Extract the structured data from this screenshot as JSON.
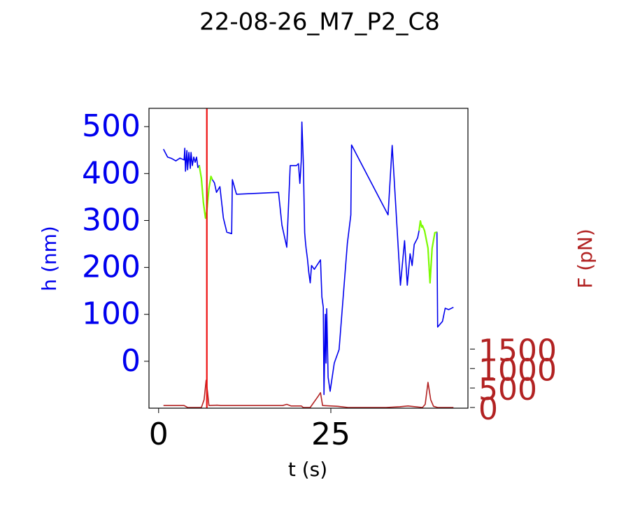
{
  "chart_data": {
    "type": "line",
    "title": "22-08-26_M7_P2_C8",
    "xlabel": "t (s)",
    "ylabel": "h (nm)",
    "y2label": "F (pN)",
    "xlim": [
      -1.4,
      44.9
    ],
    "ylim": [
      -100,
      539
    ],
    "y2lim": [
      -18,
      7680
    ],
    "xticks": [
      0,
      25
    ],
    "yticks": [
      0,
      100,
      200,
      300,
      400,
      500
    ],
    "y2ticks": [
      0,
      500,
      1000,
      1500
    ],
    "vline": {
      "x": 7.0,
      "color": "#ee1111"
    },
    "series": [
      {
        "color": "#0000ee",
        "x": [
          0.7,
          1.3,
          1.9,
          2.5,
          3.1,
          3.7,
          3.8,
          3.9,
          4.1,
          4.2,
          4.4,
          4.6,
          4.7,
          4.9,
          5.1,
          5.3,
          5.5,
          5.7,
          5.9,
          6.2,
          6.5,
          6.8,
          7.0,
          7.3,
          7.6,
          7.8,
          8.1,
          8.4,
          8.9,
          9.4,
          9.9,
          10.6,
          10.7,
          11.3,
          17.4,
          17.9,
          18.6,
          19.1,
          20.0,
          20.3,
          20.5,
          20.7,
          20.8,
          21.0,
          21.2,
          21.3,
          21.4,
          21.6,
          21.8,
          22.0,
          22.2,
          22.6,
          23.5,
          23.7,
          23.9,
          24.0,
          24.2,
          24.3,
          24.4,
          24.6,
          24.9,
          25.5,
          26.2,
          27.4,
          27.9,
          28.0,
          33.3,
          33.9,
          35.1,
          35.7,
          36.1,
          36.5,
          36.8,
          37.1,
          37.6,
          37.8,
          38.0,
          38.2,
          38.3,
          38.6,
          39.1,
          39.4,
          39.7,
          40.1,
          40.4,
          40.5,
          41.2,
          41.6,
          42.1,
          42.8
        ],
        "values": [
          452,
          435,
          432,
          427,
          433,
          429,
          454,
          405,
          449,
          408,
          445,
          411,
          445,
          417,
          435,
          424,
          435,
          413,
          417,
          390,
          338,
          305,
          320,
          368,
          394,
          387,
          380,
          360,
          372,
          305,
          275,
          272,
          387,
          356,
          360,
          290,
          243,
          417,
          417,
          421,
          379,
          427,
          510,
          427,
          274,
          256,
          241,
          219,
          189,
          167,
          204,
          196,
          216,
          137,
          115,
          -71,
          100,
          -4,
          112,
          -34,
          -64,
          -4,
          25,
          251,
          312,
          461,
          312,
          460,
          162,
          257,
          162,
          229,
          204,
          249,
          263,
          278,
          299,
          286,
          289,
          278,
          241,
          167,
          241,
          274,
          275,
          73,
          85,
          113,
          110,
          115
        ]
      },
      {
        "color": "#7cfc00",
        "x": [
          5.9,
          6.2,
          6.5,
          6.8,
          7.0,
          7.3,
          7.6,
          7.8,
          null,
          37.8,
          38.0,
          38.2,
          38.3,
          38.6,
          39.1,
          39.4,
          39.7,
          40.1,
          40.4
        ],
        "values": [
          417,
          390,
          338,
          305,
          320,
          368,
          394,
          387,
          null,
          278,
          299,
          286,
          289,
          278,
          241,
          167,
          241,
          274,
          275
        ]
      },
      {
        "color": "#b22222",
        "axis": "y2",
        "x": [
          0.7,
          3.7,
          4.2,
          6.2,
          6.6,
          6.9,
          7.1,
          7.3,
          8.5,
          9.0,
          18.0,
          18.6,
          19.2,
          20.7,
          21.0,
          22.0,
          23.2,
          23.5,
          23.8,
          26.0,
          27.5,
          33.0,
          35.0,
          36.2,
          38.3,
          38.7,
          39.1,
          39.5,
          39.9,
          40.5,
          42.8
        ],
        "values": [
          50,
          50,
          0,
          0,
          200,
          700,
          400,
          50,
          60,
          50,
          50,
          80,
          40,
          40,
          0,
          0,
          300,
          380,
          50,
          30,
          0,
          0,
          20,
          40,
          0,
          80,
          646,
          200,
          30,
          0,
          0
        ]
      }
    ]
  }
}
